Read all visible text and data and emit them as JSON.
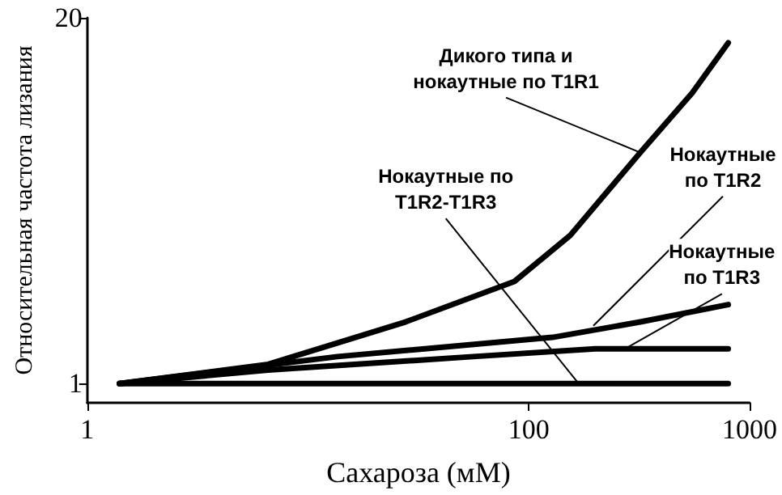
{
  "chart_data": {
    "type": "line",
    "xlabel": "Сахароза (мМ)",
    "ylabel": "Относительная частота лизания",
    "log": "x",
    "xlim": [
      1,
      1000
    ],
    "xticks": [
      1,
      100,
      1000
    ],
    "ylim": [
      0,
      20
    ],
    "yticks": [
      1,
      20
    ],
    "grid": false,
    "marker": "none",
    "line_style": "solid",
    "series": [
      {
        "color": "#000000",
        "x": [
          1.4,
          6.6,
          27.6,
          86,
          154,
          320,
          550,
          800
        ],
        "values": [
          1,
          2,
          4.2,
          6.3,
          8.7,
          13,
          16.1,
          18.7
        ]
      },
      {
        "color": "#000000",
        "x": [
          1.4,
          13.6,
          128,
          320,
          800
        ],
        "values": [
          1,
          2.4,
          3.4,
          4.2,
          5.1
        ]
      },
      {
        "color": "#000000",
        "x": [
          1.4,
          6.6,
          56,
          200,
          800
        ],
        "values": [
          1,
          1.7,
          2.4,
          2.8,
          2.8
        ]
      },
      {
        "color": "#000000",
        "x": [
          1.4,
          800
        ],
        "values": [
          1,
          1
        ]
      }
    ],
    "annotations": [
      {
        "text": "Дикого типа и\nнокаутные по T1R1",
        "x": 320,
        "y": 13
      },
      {
        "text": "Нокаутные по\nT1R2-T1R3",
        "x": 168,
        "y": 1
      },
      {
        "text": "Нокаутные\nпо T1R2",
        "x": 196,
        "y": 4
      },
      {
        "text": "Нокаутные\nпо T1R3",
        "x": 272,
        "y": 2.8
      }
    ]
  }
}
